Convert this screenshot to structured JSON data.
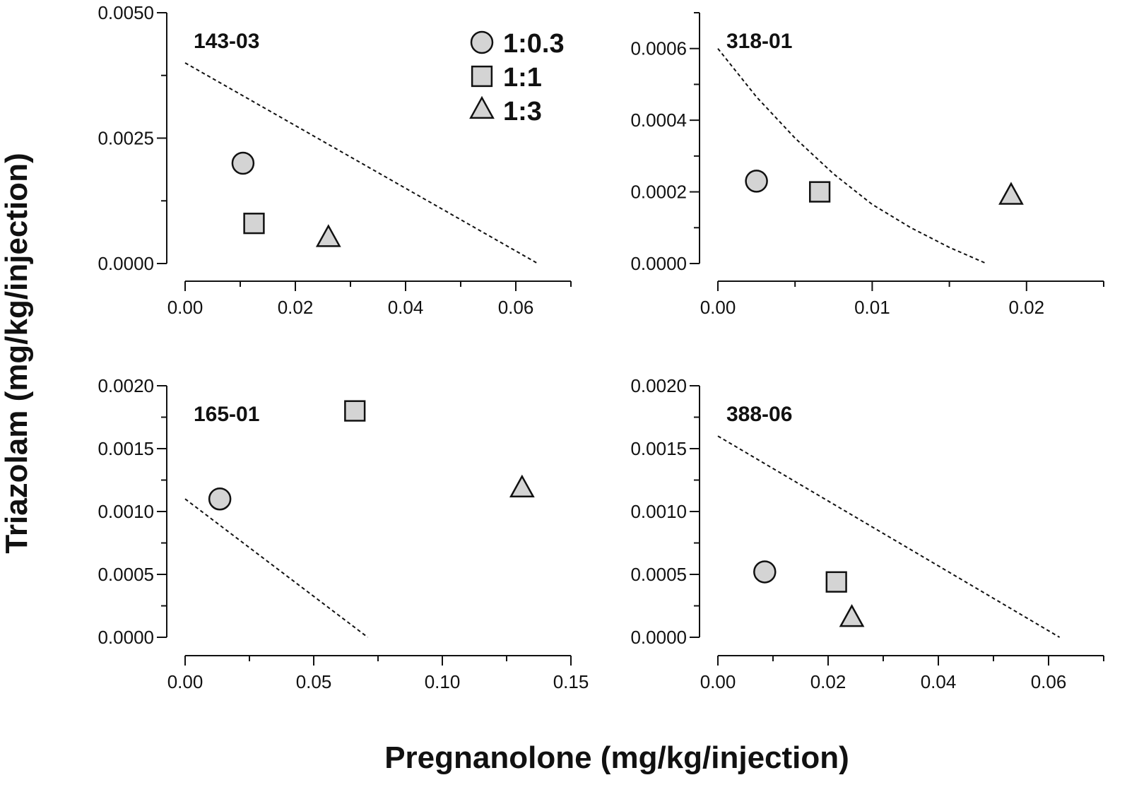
{
  "figure": {
    "y_axis_title": "Triazolam (mg/kg/injection)",
    "x_axis_title": "Pregnanolone (mg/kg/injection)"
  },
  "legend": {
    "items": [
      {
        "label": "1:0.3",
        "marker": "circle"
      },
      {
        "label": "1:1",
        "marker": "square"
      },
      {
        "label": "1:3",
        "marker": "triangle"
      }
    ]
  },
  "chart_data": [
    {
      "type": "scatter",
      "title": "143-03",
      "xlabel": "Pregnanolone (mg/kg/injection)",
      "ylabel": "Triazolam (mg/kg/injection)",
      "xlim": [
        0,
        0.07
      ],
      "ylim": [
        0,
        0.005
      ],
      "x_ticks": [
        0.0,
        0.02,
        0.04,
        0.06
      ],
      "x_tick_labels": [
        "0.00",
        "0.02",
        "0.04",
        "0.06"
      ],
      "x_minor_step": 0.01,
      "y_ticks": [
        0,
        0.0025,
        0.005
      ],
      "y_tick_labels": [
        "0.0000",
        "0.0025",
        "0.0050"
      ],
      "y_minor_step": 0.00125,
      "additivity_line": {
        "x": [
          0,
          0.064
        ],
        "y": [
          0.004,
          0
        ]
      },
      "series": [
        {
          "name": "1:0.3",
          "marker": "circle",
          "x": 0.0105,
          "y": 0.002
        },
        {
          "name": "1:1",
          "marker": "square",
          "x": 0.0125,
          "y": 0.0008
        },
        {
          "name": "1:3",
          "marker": "triangle",
          "x": 0.026,
          "y": 0.0005
        }
      ]
    },
    {
      "type": "scatter",
      "title": "318-01",
      "xlabel": "Pregnanolone (mg/kg/injection)",
      "ylabel": "Triazolam (mg/kg/injection)",
      "xlim": [
        0,
        0.025
      ],
      "ylim": [
        0,
        0.0007
      ],
      "x_ticks": [
        0.0,
        0.01,
        0.02
      ],
      "x_tick_labels": [
        "0.00",
        "0.01",
        "0.02"
      ],
      "x_minor_step": 0.005,
      "y_ticks": [
        0,
        0.0002,
        0.0004,
        0.0006
      ],
      "y_tick_labels": [
        "0.0000",
        "0.0002",
        "0.0004",
        "0.0006"
      ],
      "y_minor_step": 0.0001,
      "additivity_line": {
        "x": [
          0,
          0.0025,
          0.005,
          0.0075,
          0.01,
          0.0125,
          0.015,
          0.0174
        ],
        "y": [
          0.0006,
          0.000465,
          0.00035,
          0.00025,
          0.000165,
          0.0001,
          4.5e-05,
          0
        ]
      },
      "series": [
        {
          "name": "1:0.3",
          "marker": "circle",
          "x": 0.0025,
          "y": 0.00023
        },
        {
          "name": "1:1",
          "marker": "square",
          "x": 0.0066,
          "y": 0.0002
        },
        {
          "name": "1:3",
          "marker": "triangle",
          "x": 0.019,
          "y": 0.000188
        }
      ]
    },
    {
      "type": "scatter",
      "title": "165-01",
      "xlabel": "Pregnanolone (mg/kg/injection)",
      "ylabel": "Triazolam (mg/kg/injection)",
      "xlim": [
        0,
        0.15
      ],
      "ylim": [
        0,
        0.002
      ],
      "x_ticks": [
        0.0,
        0.05,
        0.1,
        0.15
      ],
      "x_tick_labels": [
        "0.00",
        "0.05",
        "0.10",
        "0.15"
      ],
      "x_minor_step": 0.025,
      "y_ticks": [
        0,
        0.0005,
        0.001,
        0.0015,
        0.002
      ],
      "y_tick_labels": [
        "0.0000",
        "0.0005",
        "0.0010",
        "0.0015",
        "0.0020"
      ],
      "y_minor_step": 0.00025,
      "additivity_line": {
        "x": [
          0,
          0.071
        ],
        "y": [
          0.0011,
          0
        ]
      },
      "series": [
        {
          "name": "1:0.3",
          "marker": "circle",
          "x": 0.0135,
          "y": 0.0011
        },
        {
          "name": "1:1",
          "marker": "square",
          "x": 0.066,
          "y": 0.0018
        },
        {
          "name": "1:3",
          "marker": "triangle",
          "x": 0.131,
          "y": 0.00118
        }
      ]
    },
    {
      "type": "scatter",
      "title": "388-06",
      "xlabel": "Pregnanolone (mg/kg/injection)",
      "ylabel": "Triazolam (mg/kg/injection)",
      "xlim": [
        0,
        0.07
      ],
      "ylim": [
        0,
        0.002
      ],
      "x_ticks": [
        0.0,
        0.02,
        0.04,
        0.06
      ],
      "x_tick_labels": [
        "0.00",
        "0.02",
        "0.04",
        "0.06"
      ],
      "x_minor_step": 0.01,
      "y_ticks": [
        0,
        0.0005,
        0.001,
        0.0015,
        0.002
      ],
      "y_tick_labels": [
        "0.0000",
        "0.0005",
        "0.0010",
        "0.0015",
        "0.0020"
      ],
      "y_minor_step": 0.00025,
      "additivity_line": {
        "x": [
          0,
          0.062
        ],
        "y": [
          0.0016,
          0
        ]
      },
      "series": [
        {
          "name": "1:0.3",
          "marker": "circle",
          "x": 0.0085,
          "y": 0.00052
        },
        {
          "name": "1:1",
          "marker": "square",
          "x": 0.0215,
          "y": 0.00044
        },
        {
          "name": "1:3",
          "marker": "triangle",
          "x": 0.0243,
          "y": 0.00015
        }
      ]
    }
  ]
}
